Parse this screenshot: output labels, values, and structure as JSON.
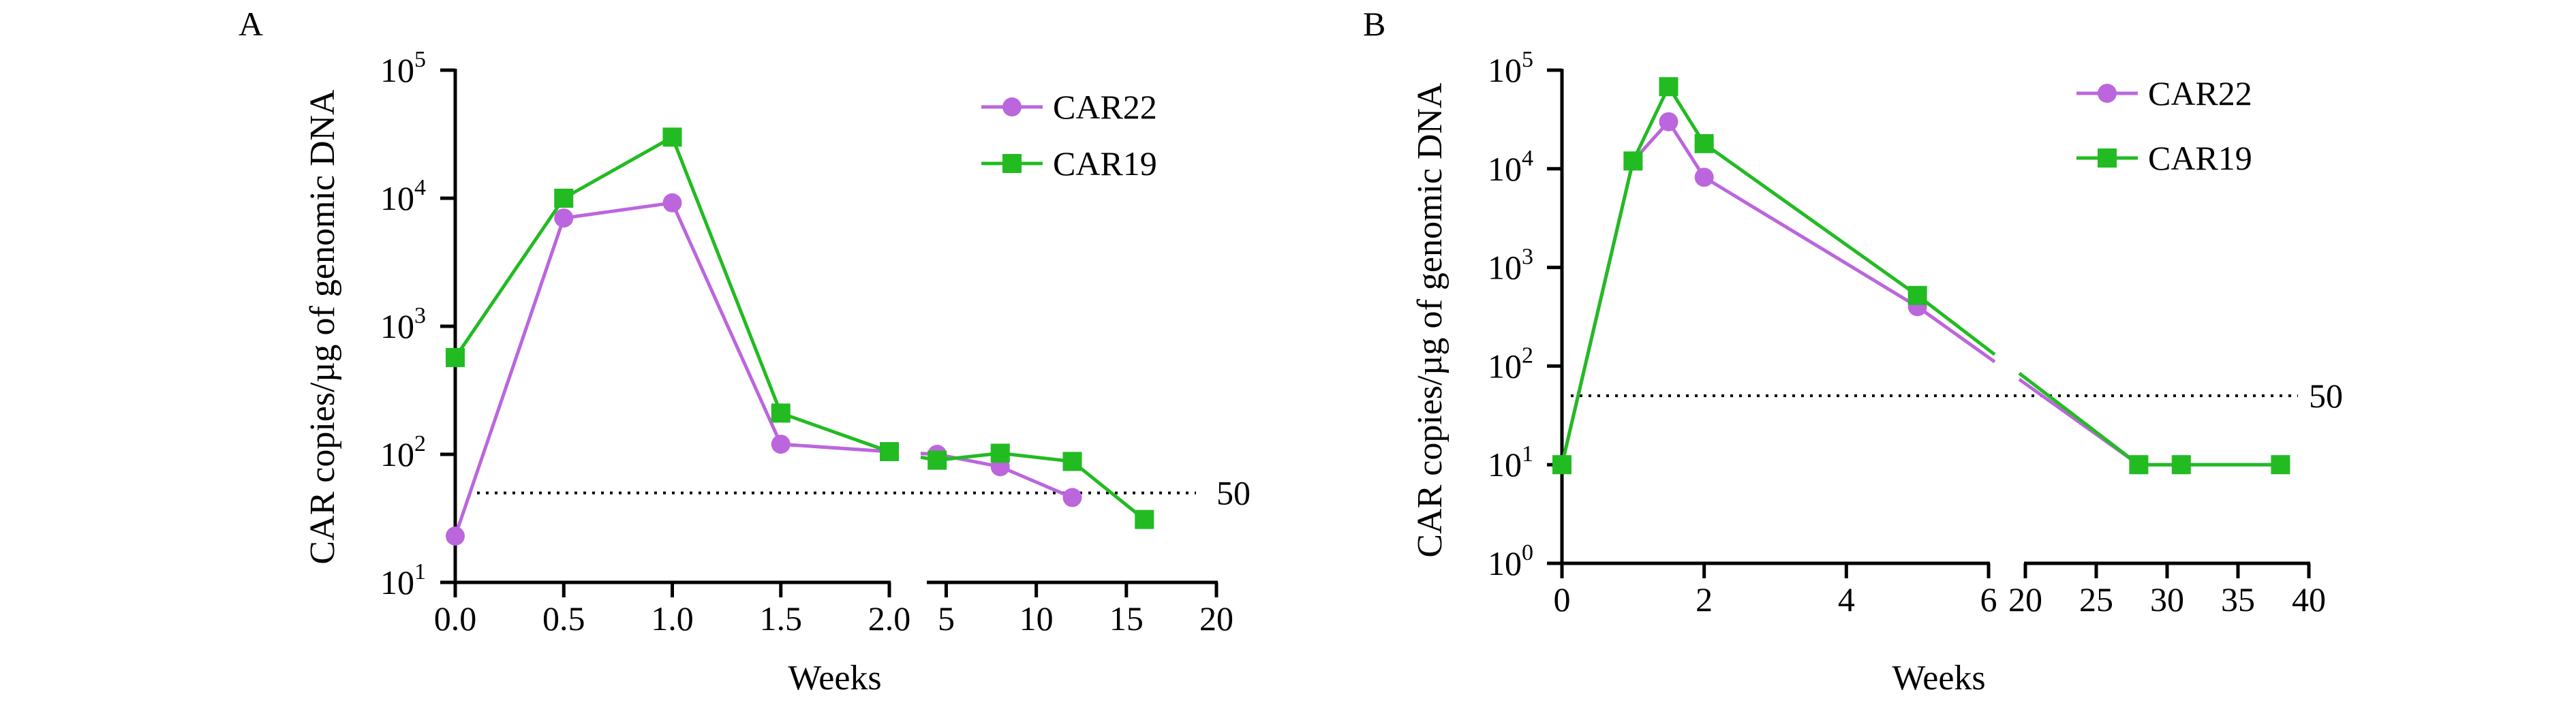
{
  "chart_data": [
    {
      "panel_label": "A",
      "type": "line",
      "yscale": "log",
      "ylim_exponents": [
        1,
        5
      ],
      "ylabel": "CAR copies/µg of genomic DNA",
      "xlabel": "Weeks",
      "y_ticks": [
        {
          "base": "10",
          "exp": "1",
          "value": 10
        },
        {
          "base": "10",
          "exp": "2",
          "value": 100
        },
        {
          "base": "10",
          "exp": "3",
          "value": 1000
        },
        {
          "base": "10",
          "exp": "4",
          "value": 10000
        },
        {
          "base": "10",
          "exp": "5",
          "value": 100000
        }
      ],
      "x_segments": [
        {
          "range": [
            0,
            2
          ],
          "ticks": [
            {
              "v": 0,
              "label": "0.0"
            },
            {
              "v": 0.5,
              "label": "0.5"
            },
            {
              "v": 1,
              "label": "1.0"
            },
            {
              "v": 1.5,
              "label": "1.5"
            },
            {
              "v": 2,
              "label": "2.0"
            }
          ]
        },
        {
          "range": [
            4,
            20
          ],
          "ticks": [
            {
              "v": 5,
              "label": "5"
            },
            {
              "v": 10,
              "label": "10"
            },
            {
              "v": 15,
              "label": "15"
            },
            {
              "v": 20,
              "label": "20"
            }
          ]
        }
      ],
      "threshold": {
        "value": 50,
        "label": "50"
      },
      "legend": {
        "position": "top-right"
      },
      "series": [
        {
          "name": "CAR22",
          "color": "#bb66dd",
          "marker": "circle",
          "points": [
            [
              0,
              23
            ],
            [
              0.5,
              7000
            ],
            [
              1,
              9200
            ],
            [
              1.5,
              120
            ],
            [
              2,
              105
            ],
            [
              4.5,
              100
            ],
            [
              8,
              80
            ],
            [
              12,
              46
            ]
          ]
        },
        {
          "name": "CAR19",
          "color": "#22bb22",
          "marker": "square",
          "points": [
            [
              0,
              570
            ],
            [
              0.5,
              10000
            ],
            [
              1,
              30000
            ],
            [
              1.5,
              210
            ],
            [
              2,
              105
            ],
            [
              4.5,
              90
            ],
            [
              8,
              102
            ],
            [
              12,
              88
            ],
            [
              16,
              31
            ]
          ]
        }
      ]
    },
    {
      "panel_label": "B",
      "type": "line",
      "yscale": "log",
      "ylim_exponents": [
        0,
        5
      ],
      "ylabel": "CAR copies/µg of genomic DNA",
      "xlabel": "Weeks",
      "y_ticks": [
        {
          "base": "10",
          "exp": "0",
          "value": 1
        },
        {
          "base": "10",
          "exp": "1",
          "value": 10
        },
        {
          "base": "10",
          "exp": "2",
          "value": 100
        },
        {
          "base": "10",
          "exp": "3",
          "value": 1000
        },
        {
          "base": "10",
          "exp": "4",
          "value": 10000
        },
        {
          "base": "10",
          "exp": "5",
          "value": 100000
        }
      ],
      "x_segments": [
        {
          "range": [
            0,
            6
          ],
          "ticks": [
            {
              "v": 0,
              "label": "0"
            },
            {
              "v": 2,
              "label": "2"
            },
            {
              "v": 4,
              "label": "4"
            },
            {
              "v": 6,
              "label": "6"
            }
          ]
        },
        {
          "range": [
            20,
            40
          ],
          "ticks": [
            {
              "v": 20,
              "label": "20"
            },
            {
              "v": 25,
              "label": "25"
            },
            {
              "v": 30,
              "label": "30"
            },
            {
              "v": 35,
              "label": "35"
            },
            {
              "v": 40,
              "label": "40"
            }
          ]
        }
      ],
      "threshold": {
        "value": 50,
        "label": "50"
      },
      "legend": {
        "position": "top-right"
      },
      "series": [
        {
          "name": "CAR22",
          "color": "#bb66dd",
          "marker": "circle",
          "points": [
            [
              0,
              10
            ],
            [
              1,
              12000
            ],
            [
              1.5,
              30000
            ],
            [
              2,
              8200
            ],
            [
              5,
              400
            ],
            [
              28,
              10
            ],
            [
              31,
              10
            ],
            [
              38,
              10
            ]
          ]
        },
        {
          "name": "CAR19",
          "color": "#22bb22",
          "marker": "square",
          "points": [
            [
              0,
              10
            ],
            [
              1,
              12000
            ],
            [
              1.5,
              68000
            ],
            [
              2,
              18000
            ],
            [
              5,
              520
            ],
            [
              28,
              10
            ],
            [
              31,
              10
            ],
            [
              38,
              10
            ]
          ]
        }
      ]
    }
  ]
}
